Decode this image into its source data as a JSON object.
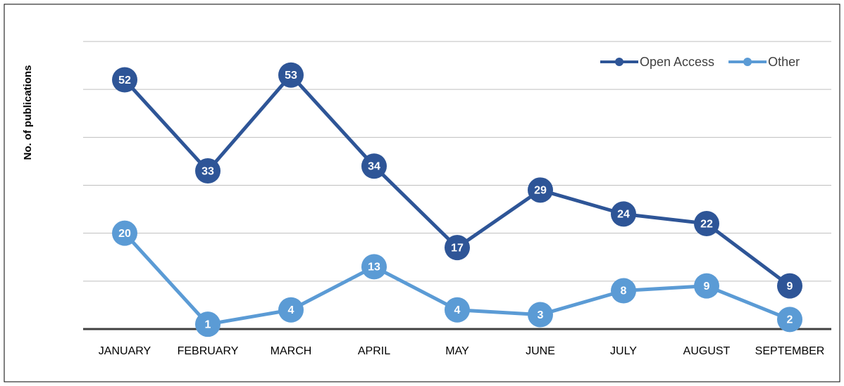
{
  "chart_data": {
    "type": "line",
    "y_label": "No. of publications",
    "categories": [
      "JANUARY",
      "FEBRUARY",
      "MARCH",
      "APRIL",
      "MAY",
      "JUNE",
      "JULY",
      "AUGUST",
      "SEPTEMBER"
    ],
    "series": [
      {
        "name": "Open Access",
        "color": "#2e5597",
        "values": [
          52,
          33,
          53,
          34,
          17,
          29,
          24,
          22,
          9
        ]
      },
      {
        "name": "Other",
        "color": "#5b9bd5",
        "values": [
          20,
          1,
          4,
          13,
          4,
          3,
          8,
          9,
          2
        ]
      }
    ],
    "ylim": [
      0,
      60
    ],
    "yticks": [
      0,
      10,
      20,
      30,
      40,
      50,
      60
    ],
    "grid": true,
    "legend": "top-right"
  }
}
